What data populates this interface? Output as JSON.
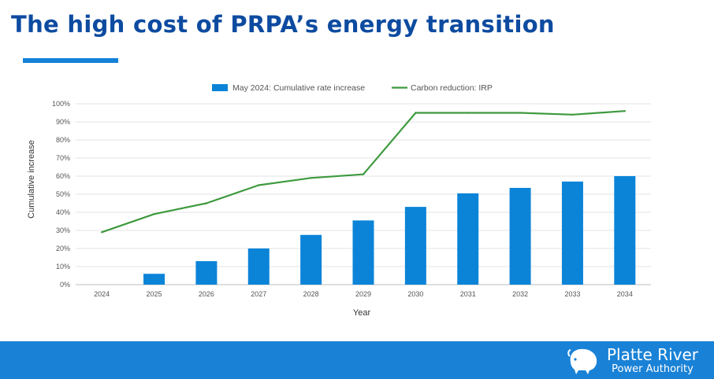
{
  "page": {
    "title": "The high cost of PRPA’s energy transition"
  },
  "colors": {
    "bar": "#0b84d8",
    "line": "#3e9a3e",
    "accent": "#1a82d6",
    "title": "#0d4ba0"
  },
  "chart_data": {
    "type": "bar",
    "title": "",
    "xlabel": "Year",
    "ylabel": "Cumulative increase",
    "ylim": [
      0,
      100
    ],
    "yticks": [
      "0%",
      "10%",
      "20%",
      "30%",
      "40%",
      "50%",
      "60%",
      "70%",
      "80%",
      "90%",
      "100%"
    ],
    "grid": true,
    "legend_position": "top-center",
    "categories": [
      "2024",
      "2025",
      "2026",
      "2027",
      "2028",
      "2029",
      "2030",
      "2031",
      "2032",
      "2033",
      "2034"
    ],
    "series": [
      {
        "name": "May 2024: Cumulative rate increase",
        "kind": "bar",
        "values": [
          0,
          6,
          13,
          20,
          27.5,
          35.5,
          43,
          50.5,
          53.5,
          57,
          60
        ]
      },
      {
        "name": "Carbon reduction: IRP",
        "kind": "line",
        "values": [
          29,
          39,
          45,
          55,
          59,
          61,
          95,
          95,
          95,
          94,
          96
        ]
      }
    ]
  },
  "footer": {
    "logo_name": "Platte River",
    "logo_sub": "Power Authority",
    "logo_icon": "bison-icon"
  }
}
